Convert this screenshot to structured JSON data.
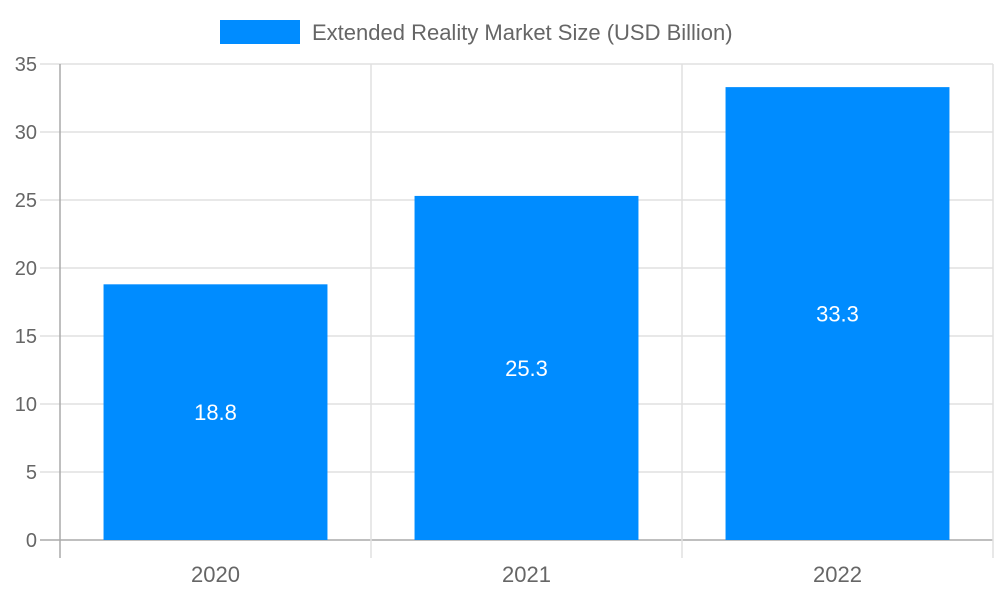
{
  "chart_data": {
    "type": "bar",
    "title": "",
    "xlabel": "",
    "ylabel": "",
    "categories": [
      "2020",
      "2021",
      "2022"
    ],
    "series": [
      {
        "name": "Extended Reality Market Size (USD Billion)",
        "values": [
          18.8,
          25.3,
          33.3
        ],
        "color": "#008cff"
      }
    ],
    "data_labels": [
      "18.8",
      "25.3",
      "33.3"
    ],
    "ylim": [
      0,
      35
    ],
    "yticks": [
      0,
      5,
      10,
      15,
      20,
      25,
      30,
      35
    ],
    "grid": true,
    "legend_position": "top"
  }
}
